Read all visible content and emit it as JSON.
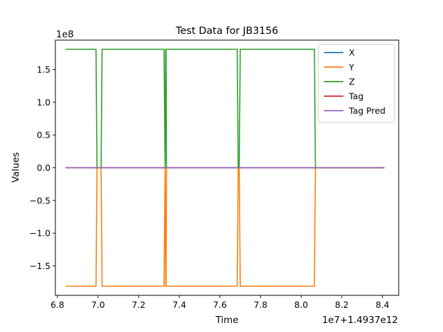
{
  "chart_data": {
    "type": "line",
    "title": "Test Data for JB3156",
    "xlabel": "Time",
    "ylabel": "Values",
    "x_offset_text": "1e7+1.4937e12",
    "y_scale_text": "1e8",
    "xlim": [
      6.79,
      8.48
    ],
    "ylim": [
      -1.95,
      1.95
    ],
    "x_ticks": [
      6.8,
      7.0,
      7.2,
      7.4,
      7.6,
      7.8,
      8.0,
      8.2,
      8.4
    ],
    "x_tick_labels": [
      "6.8",
      "7.0",
      "7.2",
      "7.4",
      "7.6",
      "7.8",
      "8.0",
      "8.2",
      "8.4"
    ],
    "y_ticks": [
      1.5,
      1.0,
      0.5,
      0.0,
      -0.5,
      -1.0,
      -1.5
    ],
    "y_tick_labels": [
      "1.5",
      "1.0",
      "0.5",
      "0.0",
      "−0.5",
      "−1.0",
      "−1.5"
    ],
    "grid": false,
    "legend_position": "top-right",
    "series": [
      {
        "name": "X",
        "color": "#1f77b4",
        "x": [
          6.84,
          8.41
        ],
        "y": [
          0,
          0
        ]
      },
      {
        "name": "Y",
        "color": "#ff7f0e",
        "x": [
          6.84,
          6.99,
          6.995,
          7.015,
          7.02,
          7.325,
          7.33,
          7.333,
          7.337,
          7.335,
          7.34,
          7.685,
          7.69,
          7.695,
          7.7,
          8.065,
          8.07,
          8.41
        ],
        "y": [
          -1.81,
          -1.81,
          0,
          0,
          -1.81,
          -1.81,
          0,
          -1.81,
          0,
          -1.81,
          -1.81,
          -1.81,
          0,
          0,
          -1.81,
          -1.81,
          0,
          0
        ]
      },
      {
        "name": "Z",
        "color": "#2ca02c",
        "x": [
          6.84,
          6.99,
          6.995,
          7.015,
          7.02,
          7.325,
          7.33,
          7.333,
          7.337,
          7.335,
          7.34,
          7.685,
          7.69,
          7.695,
          7.7,
          8.065,
          8.07,
          8.41
        ],
        "y": [
          1.81,
          1.81,
          0,
          0,
          1.81,
          1.81,
          0,
          1.81,
          0,
          1.81,
          1.81,
          1.81,
          0,
          0,
          1.81,
          1.81,
          0,
          0
        ]
      },
      {
        "name": "Tag",
        "color": "#d62728",
        "x": [
          6.84,
          8.41
        ],
        "y": [
          0,
          0
        ]
      },
      {
        "name": "Tag Pred",
        "color": "#9467bd",
        "x": [
          6.84,
          8.41
        ],
        "y": [
          0,
          0
        ]
      }
    ]
  }
}
